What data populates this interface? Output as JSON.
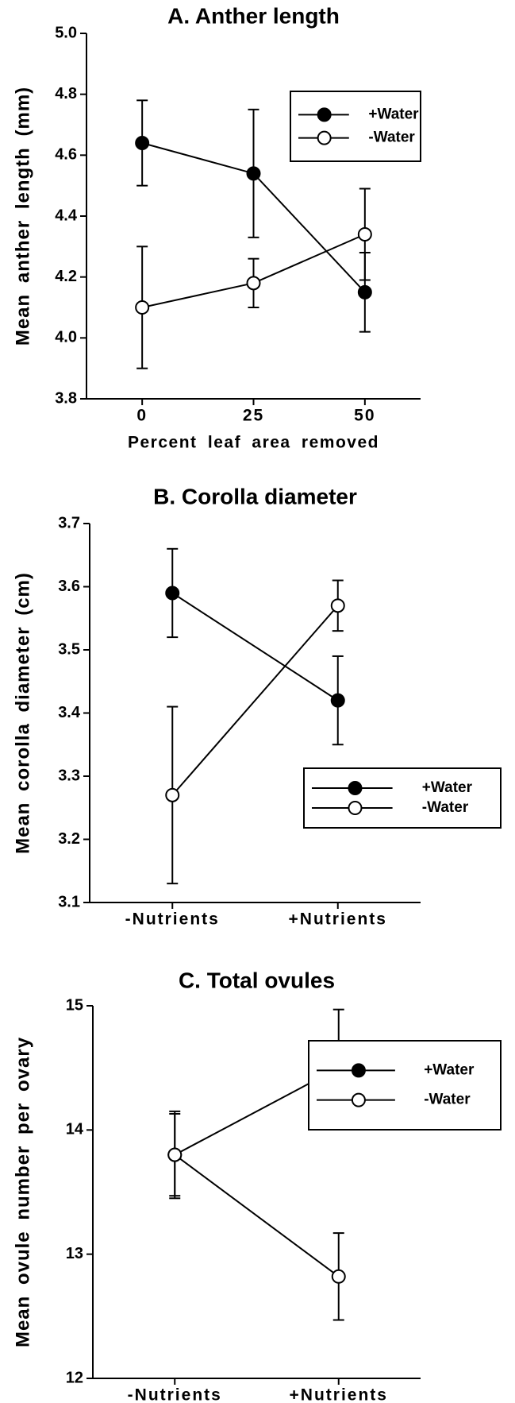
{
  "chart_data": [
    {
      "type": "line",
      "title": "A. Anther length",
      "x_label": "Percent leaf area removed",
      "y_label": "Mean anther length (mm)",
      "categories": [
        "0",
        "25",
        "50"
      ],
      "ylim": [
        3.8,
        5.0
      ],
      "yticks": [
        3.8,
        {
          "value": 4,
          "label": "4.0"
        },
        4.2,
        4.4,
        4.6,
        4.8,
        {
          "value": 5,
          "label": "5.0"
        }
      ],
      "series": [
        {
          "name": "+Water",
          "color": "#000000",
          "filled": true,
          "values": [
            4.64,
            4.54,
            4.15
          ],
          "errors": [
            0.14,
            0.21,
            0.13
          ]
        },
        {
          "name": "-Water",
          "color": "#000000",
          "filled": false,
          "values": [
            4.1,
            4.18,
            4.34
          ],
          "errors": [
            0.2,
            0.08,
            0.15
          ]
        }
      ]
    },
    {
      "type": "line",
      "title": "B. Corolla diameter",
      "y_label": "Mean corolla diameter (cm)",
      "categories": [
        "-Nutrients",
        "+Nutrients"
      ],
      "ylim": [
        3.1,
        3.7
      ],
      "yticks": [
        3.1,
        3.2,
        3.3,
        3.4,
        3.5,
        3.6,
        3.7
      ],
      "series": [
        {
          "name": "+Water",
          "color": "#000000",
          "filled": true,
          "values": [
            3.59,
            3.42
          ],
          "errors": [
            0.07,
            0.07
          ]
        },
        {
          "name": "-Water",
          "color": "#000000",
          "filled": false,
          "values": [
            3.27,
            3.57
          ],
          "errors": [
            0.14,
            0.04
          ]
        }
      ]
    },
    {
      "type": "line",
      "title": "C. Total ovules",
      "y_label": "Mean ovule number per ovary",
      "categories": [
        "-Nutrients",
        "+Nutrients"
      ],
      "ylim": [
        12,
        15
      ],
      "yticks": [
        12,
        13,
        14,
        15
      ],
      "series": [
        {
          "name": "+Water",
          "color": "#000000",
          "filled": true,
          "values": [
            13.8,
            14.5
          ],
          "errors": [
            0.35,
            0.47
          ]
        },
        {
          "name": "-Water",
          "color": "#000000",
          "filled": false,
          "values": [
            13.8,
            12.82
          ],
          "errors": [
            0.33,
            0.35
          ]
        }
      ]
    }
  ]
}
